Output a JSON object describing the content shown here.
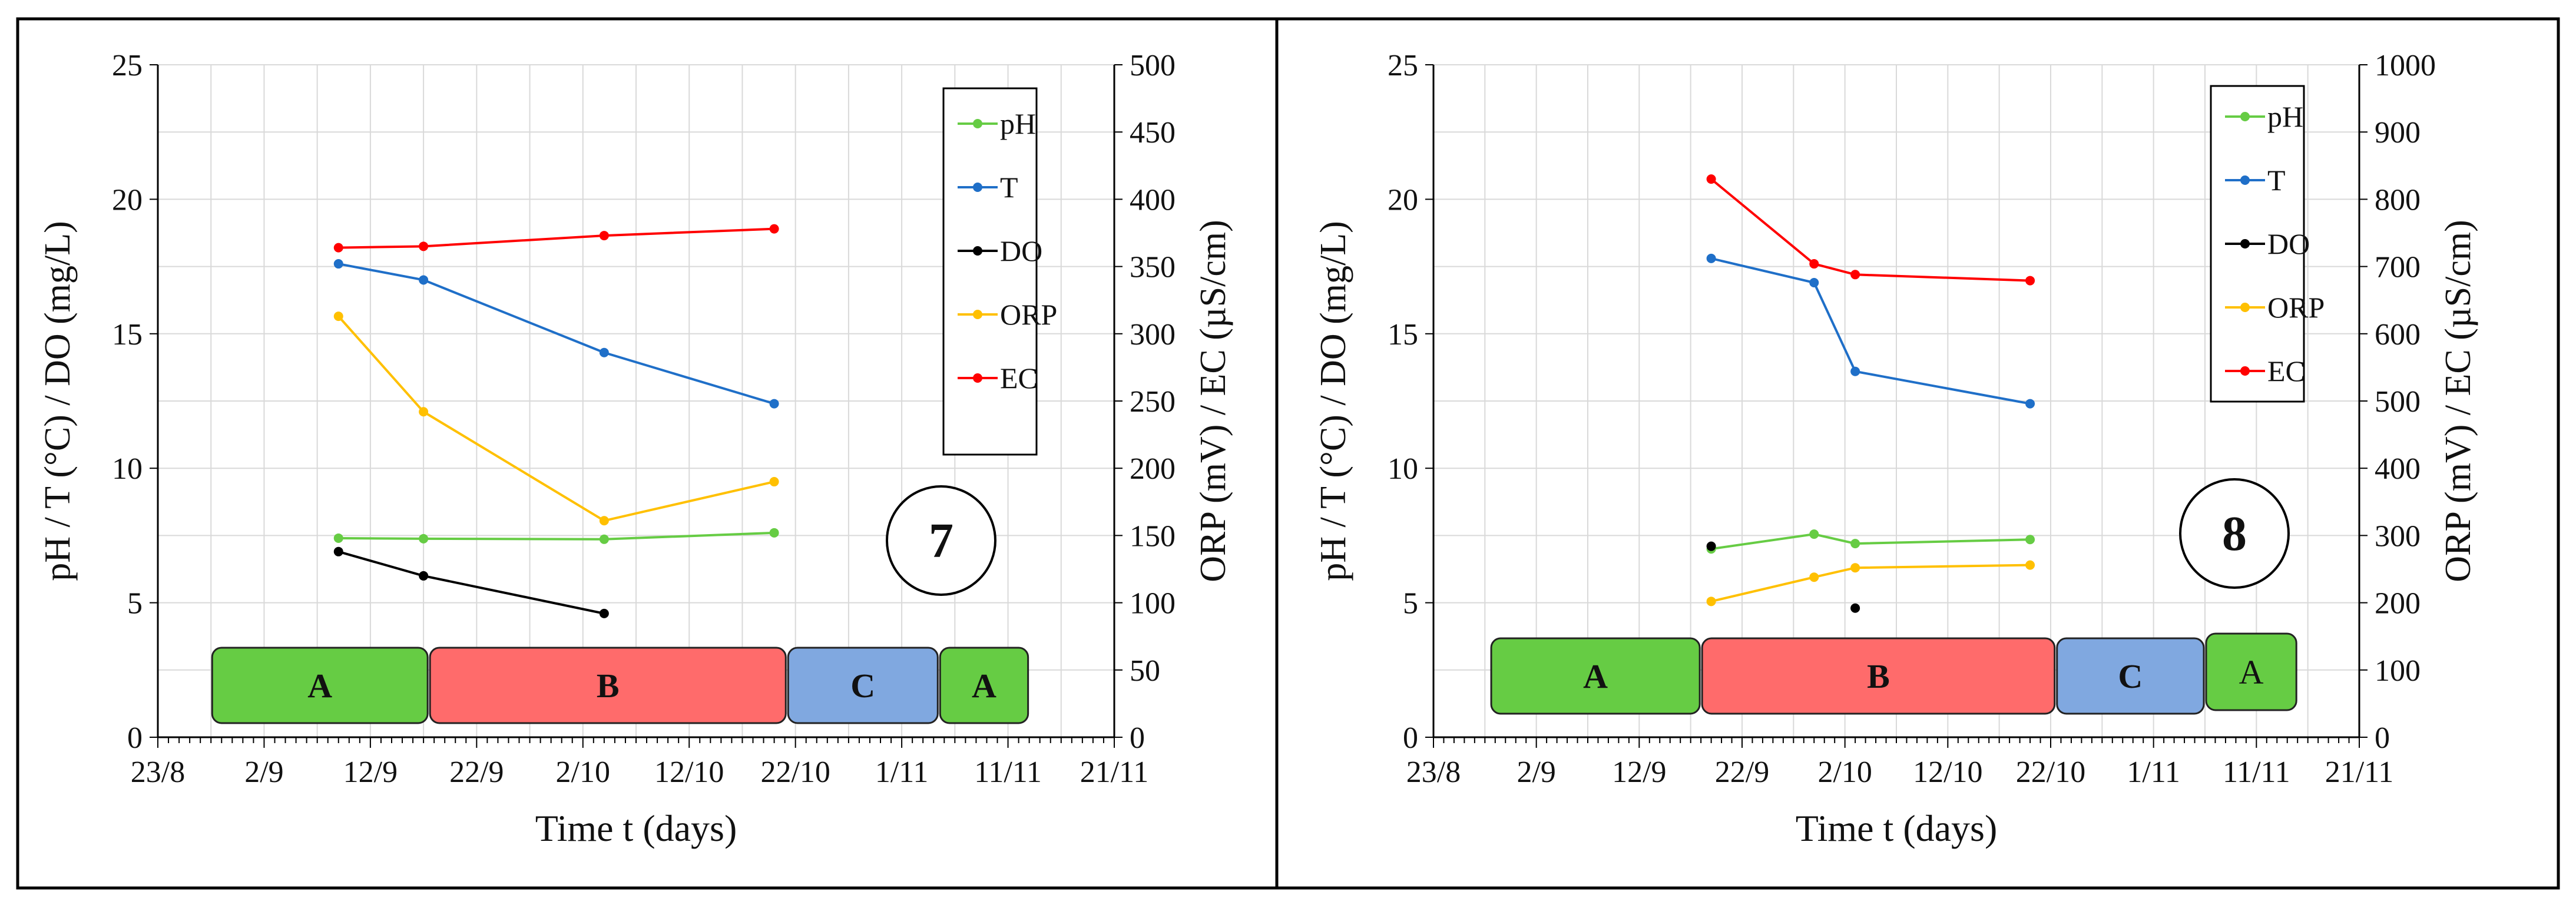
{
  "colors": {
    "pH": "#66cc44",
    "T": "#1f6fc8",
    "DO": "#000000",
    "ORP": "#ffc000",
    "EC": "#ff0000",
    "phase_A": "#66cc44",
    "phase_B": "#ff6b6b",
    "phase_C": "#80a8e0"
  },
  "chart_data": [
    {
      "type": "line",
      "panel_number": "7",
      "xlabel": "Time t (days)",
      "ylabel_left": "pH / T (°C) / DO (mg/L)",
      "ylabel_right": "ORP (mV) / EC (µS/cm)",
      "xlim_days": [
        0,
        90
      ],
      "x_tick_labels": [
        {
          "day": 0,
          "label": "23/8"
        },
        {
          "day": 10,
          "label": "2/9"
        },
        {
          "day": 20,
          "label": "12/9"
        },
        {
          "day": 30,
          "label": "22/9"
        },
        {
          "day": 40,
          "label": "2/10"
        },
        {
          "day": 50,
          "label": "12/10"
        },
        {
          "day": 60,
          "label": "22/10"
        },
        {
          "day": 70,
          "label": "1/11"
        },
        {
          "day": 80,
          "label": "11/11"
        },
        {
          "day": 90,
          "label": "21/11"
        }
      ],
      "ylim_left": [
        0,
        25
      ],
      "y_ticks_left": [
        "0",
        "5",
        "10",
        "15",
        "20",
        "25"
      ],
      "ylim_right": [
        0,
        500
      ],
      "y_ticks_right": [
        "0",
        "50",
        "100",
        "150",
        "200",
        "250",
        "300",
        "350",
        "400",
        "450",
        "500"
      ],
      "legend": [
        "pH",
        "T",
        "DO",
        "ORP",
        "EC"
      ],
      "series": [
        {
          "name": "pH",
          "axis": "left",
          "x": [
            17,
            25,
            42,
            58
          ],
          "values": [
            7.4,
            7.38,
            7.36,
            7.6
          ]
        },
        {
          "name": "T",
          "axis": "left",
          "x": [
            17,
            25,
            42,
            58
          ],
          "values": [
            17.6,
            17.0,
            14.3,
            12.4
          ]
        },
        {
          "name": "DO",
          "axis": "left",
          "x": [
            17,
            25,
            42
          ],
          "values": [
            6.9,
            6.0,
            4.6
          ]
        },
        {
          "name": "ORP",
          "axis": "right",
          "x": [
            17,
            25,
            42,
            58
          ],
          "values": [
            313,
            242,
            161,
            190
          ]
        },
        {
          "name": "EC",
          "axis": "right",
          "x": [
            17,
            25,
            42,
            58
          ],
          "values": [
            364,
            365,
            373,
            378
          ]
        }
      ],
      "phases": [
        {
          "label": "A",
          "color_key": "phase_A",
          "day_start": 5,
          "day_end": 25.5
        },
        {
          "label": "B",
          "color_key": "phase_B",
          "day_start": 25.5,
          "day_end": 59.2
        },
        {
          "label": "C",
          "color_key": "phase_C",
          "day_start": 59.2,
          "day_end": 73.5
        },
        {
          "label": "A",
          "color_key": "phase_A",
          "day_start": 73.5,
          "day_end": 82
        }
      ]
    },
    {
      "type": "line",
      "panel_number": "8",
      "xlabel": "Time t (days)",
      "ylabel_left": "pH / T (°C) / DO (mg/L)",
      "ylabel_right": "ORP (mV) / EC (µS/cm)",
      "xlim_days": [
        0,
        90
      ],
      "x_tick_labels": [
        {
          "day": 0,
          "label": "23/8"
        },
        {
          "day": 10,
          "label": "2/9"
        },
        {
          "day": 20,
          "label": "12/9"
        },
        {
          "day": 30,
          "label": "22/9"
        },
        {
          "day": 40,
          "label": "2/10"
        },
        {
          "day": 50,
          "label": "12/10"
        },
        {
          "day": 60,
          "label": "22/10"
        },
        {
          "day": 70,
          "label": "1/11"
        },
        {
          "day": 80,
          "label": "11/11"
        },
        {
          "day": 90,
          "label": "21/11"
        }
      ],
      "ylim_left": [
        0,
        25
      ],
      "y_ticks_left": [
        "0",
        "5",
        "10",
        "15",
        "20",
        "25"
      ],
      "ylim_right": [
        0,
        1000
      ],
      "y_ticks_right": [
        "0",
        "100",
        "200",
        "300",
        "400",
        "500",
        "600",
        "700",
        "800",
        "900",
        "1000"
      ],
      "legend": [
        "pH",
        "T",
        "DO",
        "ORP",
        "EC"
      ],
      "series": [
        {
          "name": "pH",
          "axis": "left",
          "x": [
            27,
            37,
            41,
            58
          ],
          "values": [
            7.0,
            7.55,
            7.2,
            7.35
          ]
        },
        {
          "name": "T",
          "axis": "left",
          "x": [
            27,
            37,
            41,
            58
          ],
          "values": [
            17.8,
            16.9,
            13.6,
            12.4
          ]
        },
        {
          "name": "DO",
          "axis": "left",
          "x": [
            27,
            41
          ],
          "values": [
            7.1,
            4.8
          ],
          "connected": false
        },
        {
          "name": "ORP",
          "axis": "right",
          "x": [
            27,
            37,
            41,
            58
          ],
          "values": [
            202,
            238,
            252,
            256
          ]
        },
        {
          "name": "EC",
          "axis": "right",
          "x": [
            27,
            37,
            41,
            58
          ],
          "values": [
            830,
            704,
            688,
            679
          ]
        }
      ],
      "phases": [
        {
          "label": "A",
          "color_key": "phase_A",
          "day_start": 5.5,
          "day_end": 26
        },
        {
          "label": "B",
          "color_key": "phase_B",
          "day_start": 26,
          "day_end": 60.5
        },
        {
          "label": "C",
          "color_key": "phase_C",
          "day_start": 60.5,
          "day_end": 75
        },
        {
          "label": "A",
          "color_key": "phase_A",
          "day_start": 75,
          "day_end": 84
        }
      ]
    }
  ]
}
